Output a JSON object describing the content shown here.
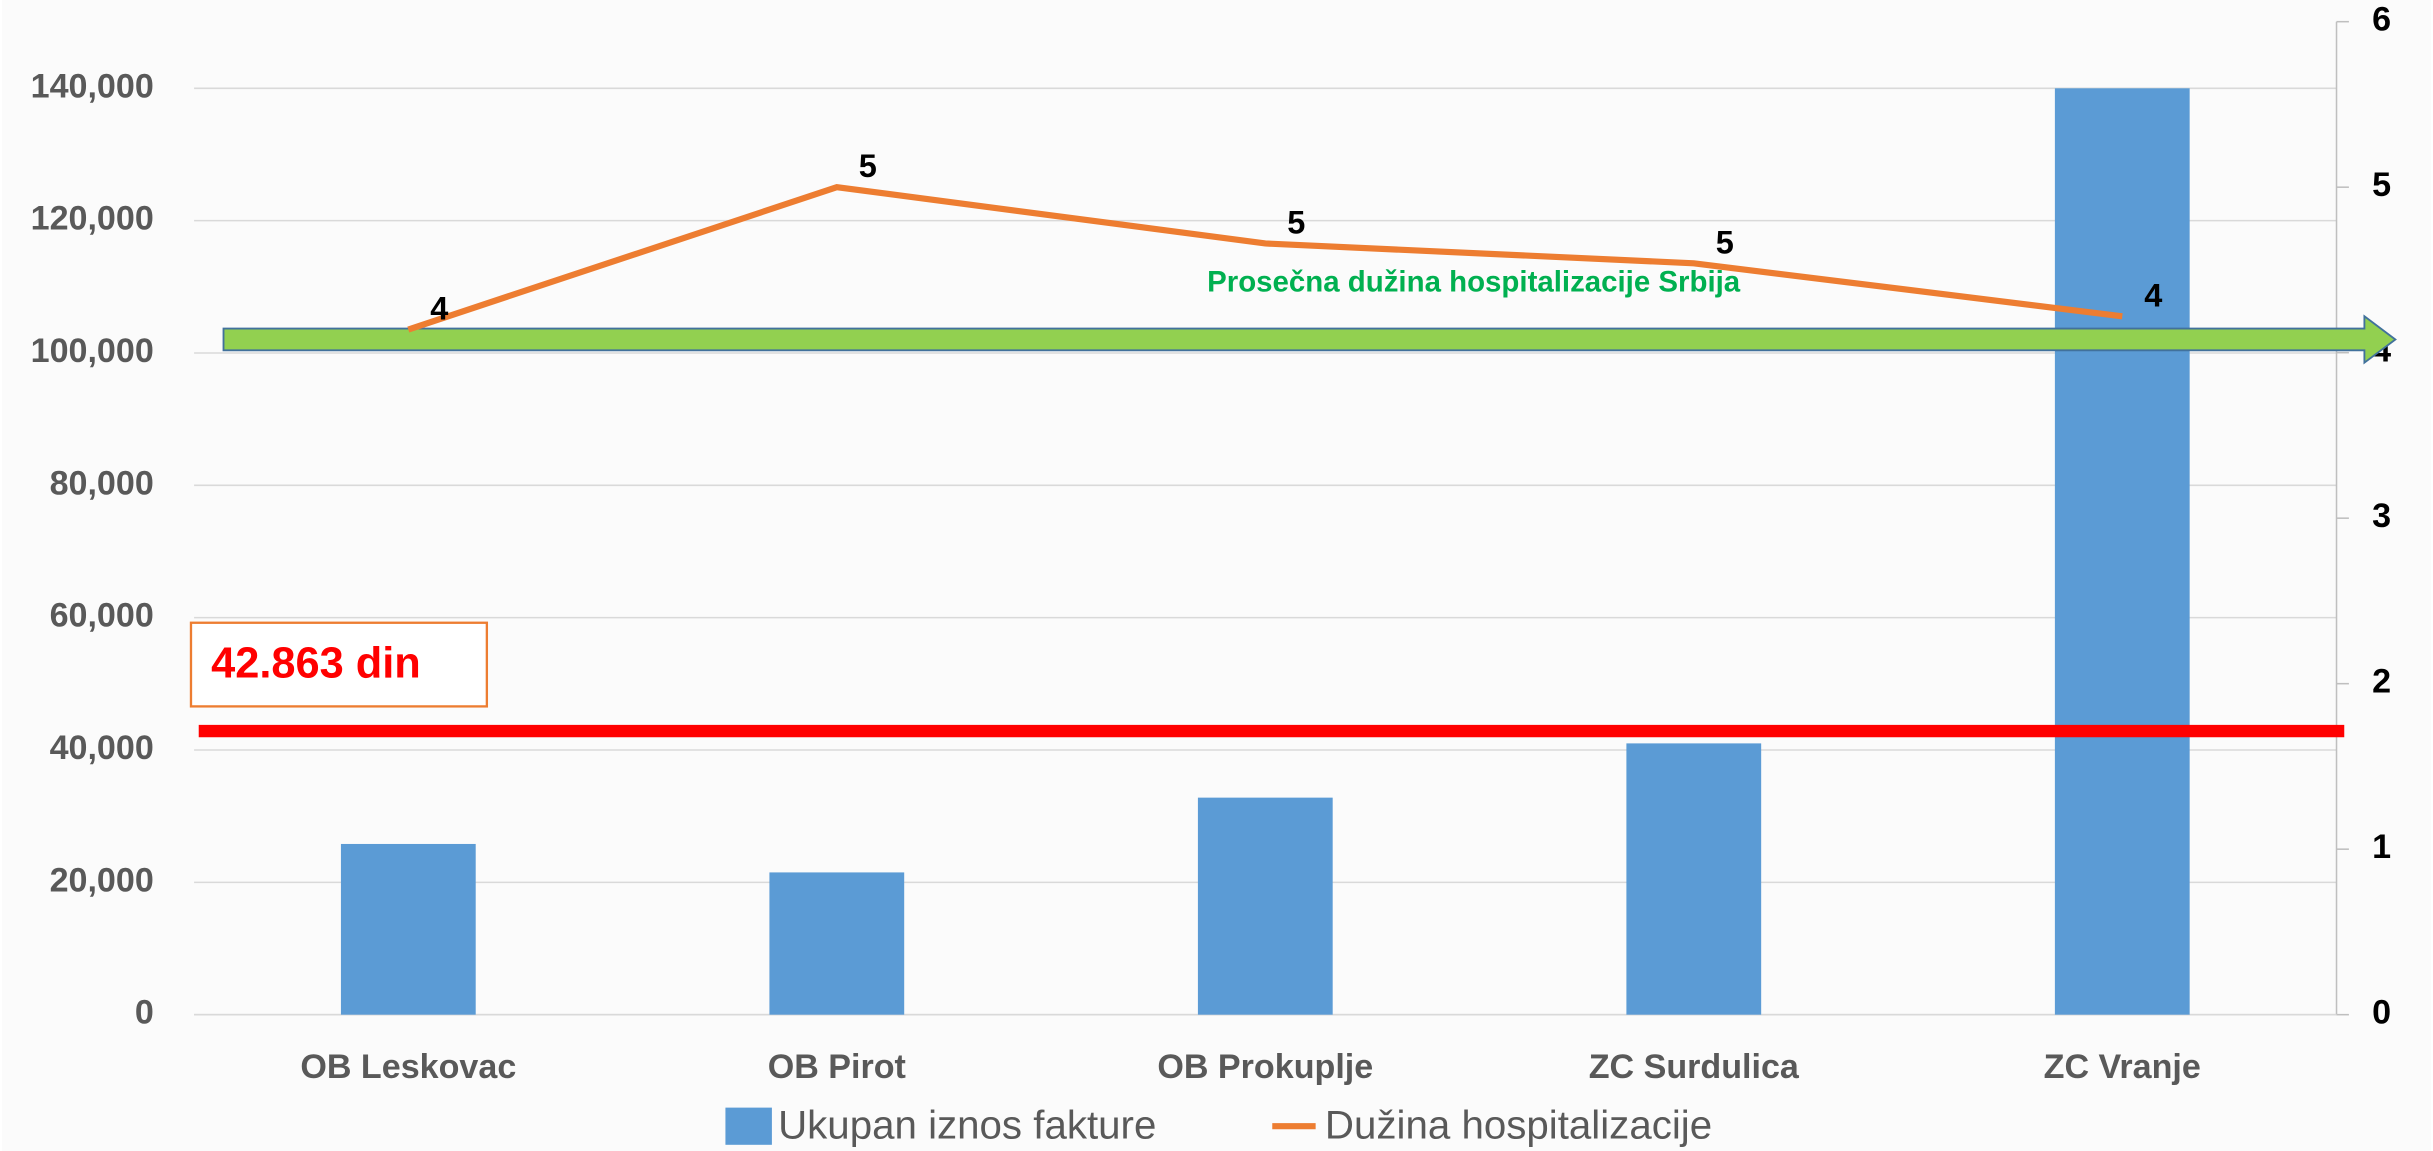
{
  "chart_data": {
    "type": "bar-line",
    "categories": [
      "OB Leskovac",
      "OB Pirot",
      "OB Prokuplje",
      "ZC  Surdulica",
      "ZC Vranje"
    ],
    "series": [
      {
        "name": "Ukupan iznos fakture",
        "color": "#5b9bd5",
        "type": "bar",
        "values": [
          25800,
          21500,
          32800,
          41000,
          140000
        ]
      },
      {
        "name": "Dužina hospitalizacije",
        "color": "#ed7d31",
        "type": "line",
        "axis": "y2",
        "values": [
          4.14,
          5.0,
          4.66,
          4.54,
          4.22
        ],
        "value_labels": [
          "4",
          "5",
          "5",
          "5",
          "4"
        ]
      }
    ],
    "ylim": [
      0,
      140000
    ],
    "yticks": [
      0,
      {
        "value": 20000,
        "label": "20,000"
      },
      {
        "value": 40000,
        "label": "40,000"
      },
      {
        "value": 60000,
        "label": "60,000"
      },
      {
        "value": 80000,
        "label": "80,000"
      },
      {
        "value": 100000,
        "label": "100,000"
      },
      {
        "value": 120000,
        "label": "120,000"
      },
      {
        "value": 140000,
        "label": "140,000"
      }
    ],
    "y2lim": [
      0,
      6
    ],
    "y2ticks": [
      0,
      1,
      2,
      3,
      4,
      5,
      6
    ],
    "grid": true,
    "legend": "bottom",
    "reference_lines": [
      {
        "label": "42.863 din",
        "value": 42863,
        "color": "#ff0000"
      },
      {
        "label": "Prosečna dužina hospitalizacije Srbija",
        "value": 4.08,
        "axis": "y2",
        "color": "#92d050"
      }
    ]
  }
}
